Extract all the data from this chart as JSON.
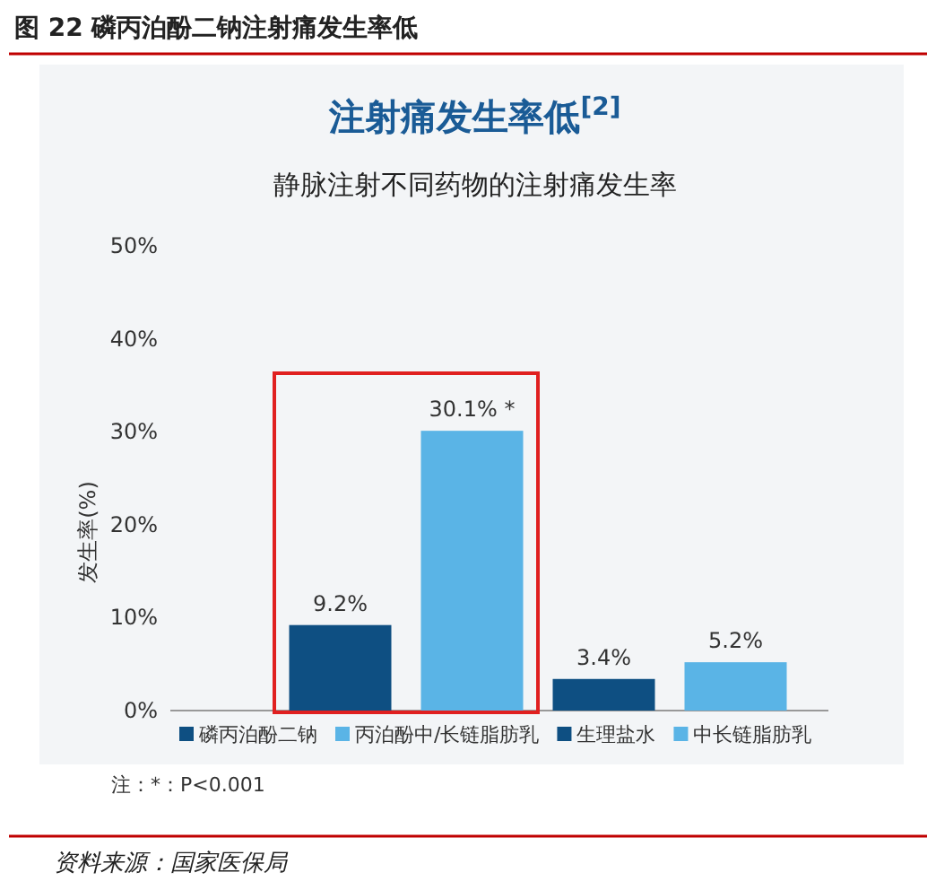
{
  "chart_data": {
    "type": "bar",
    "title": "注射痛发生率低$^{[2]}$",
    "subtitle": "静脉注射不同药物的注射痛发生率",
    "ylabel": "发生率(%)",
    "categories": [
      "磷丙泊酚二钠",
      "丙泊酚中/长链脂肪乳",
      "生理盐水",
      "中长链脂肪乳"
    ],
    "values": [
      9.2,
      30.1,
      3.4,
      5.2
    ],
    "colors": [
      "#0e4f82",
      "#5ab4e6",
      "#0e4f82",
      "#5ab4e6"
    ],
    "value_labels": [
      "9.2%",
      "30.1% *",
      "3.4%",
      "5.2%"
    ],
    "ylim": [
      0,
      50
    ],
    "yticks": [
      {
        "value": 0,
        "label": "0%"
      },
      {
        "value": 10,
        "label": "10%"
      },
      {
        "value": 20,
        "label": "20%"
      },
      {
        "value": 30,
        "label": "30%"
      },
      {
        "value": 40,
        "label": "40%"
      },
      {
        "value": 50,
        "label": "50%"
      }
    ],
    "annotations": [
      "图 22  磷丙泊酚二钠注射痛发生率低",
      "注：*：P<0.001",
      "资料来源：国家医保局"
    ]
  }
}
